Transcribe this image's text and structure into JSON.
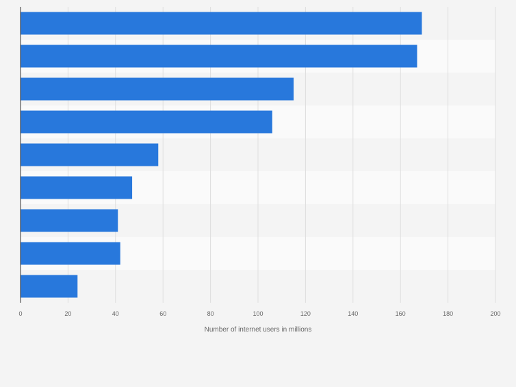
{
  "chart_data": {
    "type": "bar",
    "orientation": "horizontal",
    "categories": [
      "",
      "",
      "",
      "",
      "",
      "",
      "",
      "",
      ""
    ],
    "values": [
      169,
      167,
      115,
      106,
      58,
      47,
      41,
      42,
      24
    ],
    "title": "",
    "xlabel": "Number of internet users in millions",
    "ylabel": "",
    "xlim": [
      0,
      200
    ],
    "xticks": [
      0,
      20,
      40,
      60,
      80,
      100,
      120,
      140,
      160,
      180,
      200
    ],
    "grid": true,
    "legend": "none",
    "colors": {
      "bar": "#2878dc",
      "background": "#f4f4f4",
      "band_light": "#fafafa",
      "band_dark": "#f4f4f4",
      "grid": "#dedede",
      "axis": "#333333",
      "tick_text": "#666666"
    }
  }
}
